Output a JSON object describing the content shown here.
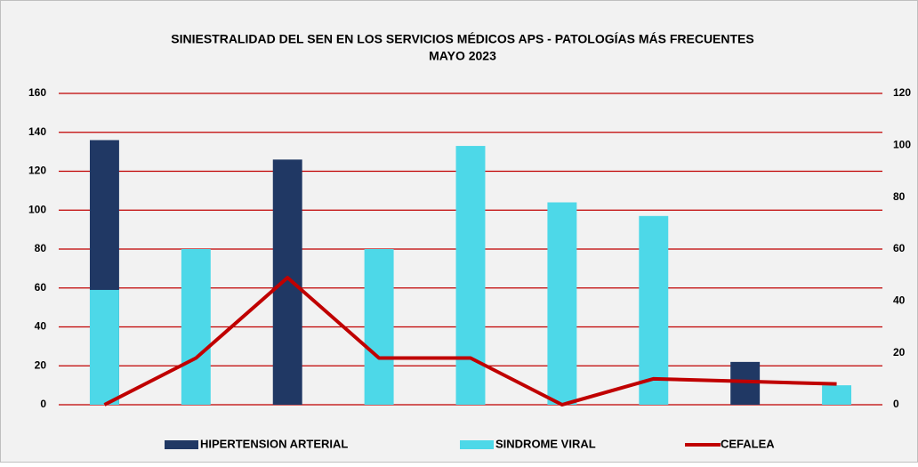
{
  "chart_data": {
    "type": "bar",
    "title": "SINIESTRALIDAD DEL SEN EN LOS SERVICIOS MÉDICOS APS - PATOLOGÍAS MÁS FRECUENTES",
    "subtitle": "MAYO 2023",
    "categories": [
      null,
      null,
      null,
      null,
      null,
      null,
      null,
      null,
      null
    ],
    "series": [
      {
        "name": "HIPERTENSION ARTERIAL",
        "type": "bar",
        "color": "#203864",
        "values": [
          136,
          null,
          126,
          null,
          null,
          null,
          null,
          22,
          null
        ]
      },
      {
        "name": "SINDROME VIRAL",
        "type": "bar",
        "color": "#4dd8e8",
        "values": [
          59,
          80,
          null,
          80,
          133,
          104,
          97,
          null,
          10
        ]
      },
      {
        "name": "CEFALEA",
        "type": "line",
        "axis": "y2",
        "color": "#c00000",
        "values": [
          0,
          18,
          49,
          18,
          18,
          0,
          10,
          9,
          8
        ]
      }
    ],
    "ylim": [
      0,
      160
    ],
    "yticks": [
      0,
      20,
      40,
      60,
      80,
      100,
      120,
      140,
      160
    ],
    "y2lim": [
      0,
      120
    ],
    "y2ticks": [
      0,
      20,
      40,
      60,
      80,
      100,
      120
    ],
    "grid": true,
    "legend": "bottom"
  }
}
